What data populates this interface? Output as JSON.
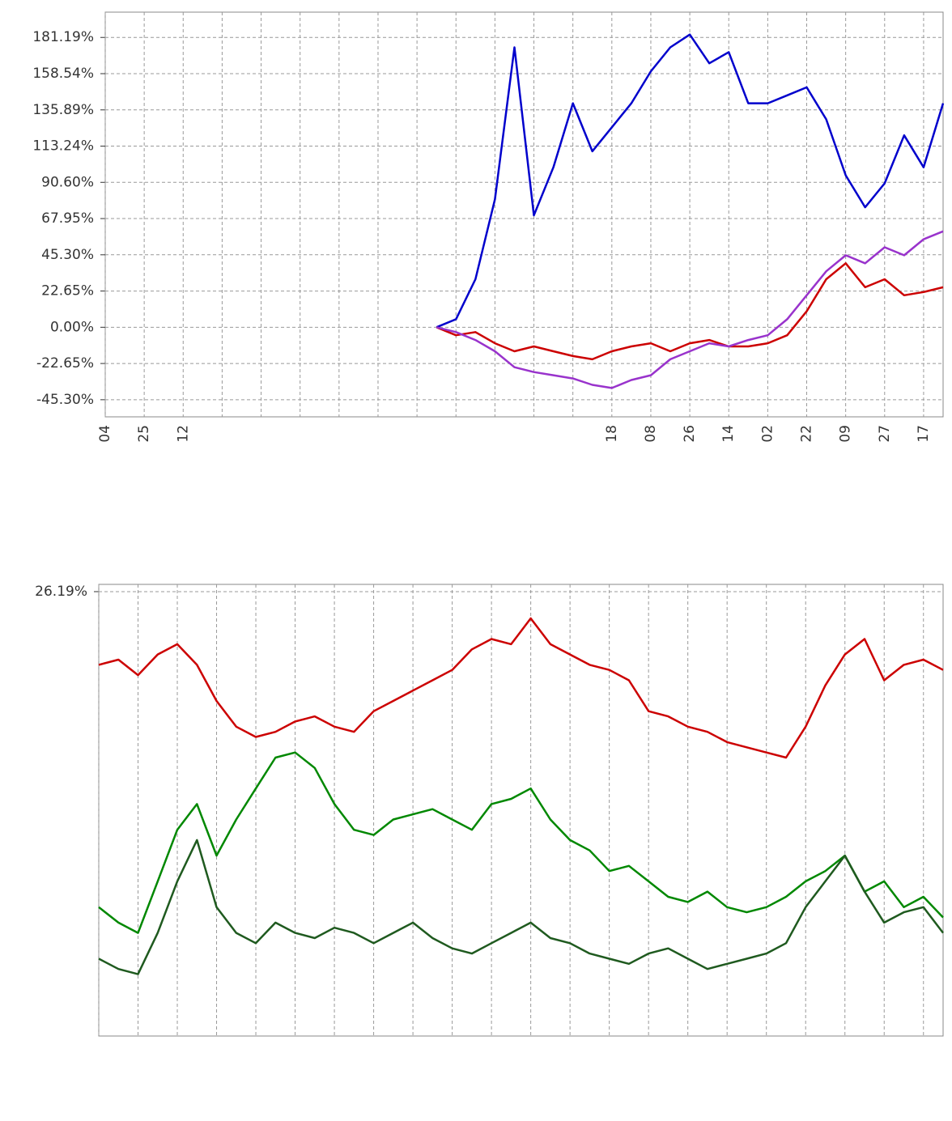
{
  "chart_data": [
    {
      "type": "line",
      "categories": [
        "04",
        null,
        "25",
        null,
        "12",
        null,
        null,
        null,
        null,
        null,
        null,
        null,
        null,
        null,
        null,
        null,
        null,
        null,
        null,
        null,
        null,
        null,
        null,
        null,
        null,
        null,
        "18",
        null,
        "08",
        null,
        "26",
        null,
        "14",
        null,
        "02",
        null,
        "22",
        null,
        "09",
        null,
        "27",
        null,
        "17",
        null
      ],
      "series": [
        {
          "color": "#0000cc",
          "values": [
            null,
            null,
            null,
            null,
            null,
            null,
            null,
            null,
            null,
            null,
            null,
            null,
            null,
            null,
            null,
            null,
            null,
            0,
            5,
            30,
            80,
            175,
            70,
            100,
            140,
            110,
            125,
            140,
            160,
            175,
            183,
            165,
            172,
            140,
            140,
            145,
            150,
            130,
            95,
            75,
            90,
            120,
            100,
            140
          ]
        },
        {
          "color": "#cc0000",
          "values": [
            null,
            null,
            null,
            null,
            null,
            null,
            null,
            null,
            null,
            null,
            null,
            null,
            null,
            null,
            null,
            null,
            null,
            0,
            -5,
            -3,
            -10,
            -15,
            -12,
            -15,
            -18,
            -20,
            -15,
            -12,
            -10,
            -15,
            -10,
            -8,
            -12,
            -12,
            -10,
            -5,
            10,
            30,
            40,
            25,
            30,
            20,
            22,
            25
          ]
        },
        {
          "color": "#9933cc",
          "values": [
            null,
            null,
            null,
            null,
            null,
            null,
            null,
            null,
            null,
            null,
            null,
            null,
            null,
            null,
            null,
            null,
            null,
            0,
            -3,
            -8,
            -15,
            -25,
            -28,
            -30,
            -32,
            -36,
            -38,
            -33,
            -30,
            -20,
            -15,
            -10,
            -12,
            -8,
            -5,
            5,
            20,
            35,
            45,
            40,
            50,
            45,
            55,
            60
          ]
        }
      ],
      "ylim": [
        -56,
        197
      ],
      "yticks": [
        {
          "value": 181.19,
          "label": "181.19%"
        },
        {
          "value": 158.54,
          "label": "158.54%"
        },
        {
          "value": 135.89,
          "label": "135.89%"
        },
        {
          "value": 113.24,
          "label": "113.24%"
        },
        {
          "value": 90.6,
          "label": "90.60%"
        },
        {
          "value": 67.95,
          "label": "67.95%"
        },
        {
          "value": 45.3,
          "label": "45.30%"
        },
        {
          "value": 22.65,
          "label": "22.65%"
        },
        {
          "value": 0,
          "label": "0.00%"
        },
        {
          "value": -22.65,
          "label": "-22.65%"
        },
        {
          "value": -45.3,
          "label": "-45.30%"
        }
      ],
      "grid": true
    },
    {
      "type": "line",
      "categories": [
        null,
        null,
        null,
        null,
        null,
        null,
        null,
        null,
        null,
        null,
        null,
        null,
        null,
        null,
        null,
        null,
        null,
        null,
        null,
        null,
        null,
        null,
        null,
        null,
        null,
        null,
        null,
        null,
        null,
        null,
        null,
        null,
        null,
        null,
        null,
        null,
        null,
        null,
        null,
        null,
        null,
        null,
        null,
        null
      ],
      "series": [
        {
          "color": "#cc0000",
          "values": [
            12,
            13,
            10,
            14,
            16,
            12,
            5,
            0,
            -2,
            -1,
            1,
            2,
            0,
            -1,
            3,
            5,
            7,
            9,
            11,
            15,
            17,
            16,
            21,
            16,
            14,
            12,
            11,
            9,
            3,
            2,
            0,
            -1,
            -3,
            -4,
            -5,
            -6,
            0,
            8,
            14,
            17,
            9,
            12,
            13,
            11
          ]
        },
        {
          "color": "#008800",
          "values": [
            -35,
            -38,
            -40,
            -30,
            -20,
            -15,
            -25,
            -18,
            -12,
            -6,
            -5,
            -8,
            -15,
            -20,
            -21,
            -18,
            -17,
            -16,
            -18,
            -20,
            -15,
            -14,
            -12,
            -18,
            -22,
            -24,
            -28,
            -27,
            -30,
            -33,
            -34,
            -32,
            -35,
            -36,
            -35,
            -33,
            -30,
            -28,
            -25,
            -32,
            -30,
            -35,
            -33,
            -37
          ]
        },
        {
          "color": "#1f5a1f",
          "values": [
            -45,
            -47,
            -48,
            -40,
            -30,
            -22,
            -35,
            -40,
            -42,
            -38,
            -40,
            -41,
            -39,
            -40,
            -42,
            -40,
            -38,
            -41,
            -43,
            -44,
            -42,
            -40,
            -38,
            -41,
            -42,
            -44,
            -45,
            -46,
            -44,
            -43,
            -45,
            -47,
            -46,
            -45,
            -44,
            -42,
            -35,
            -30,
            -25,
            -32,
            -38,
            -36,
            -35,
            -40
          ]
        }
      ],
      "ylim": [
        -60,
        27.6
      ],
      "yticks": [
        {
          "value": 26.19,
          "label": "26.19%"
        }
      ],
      "grid": true
    }
  ]
}
